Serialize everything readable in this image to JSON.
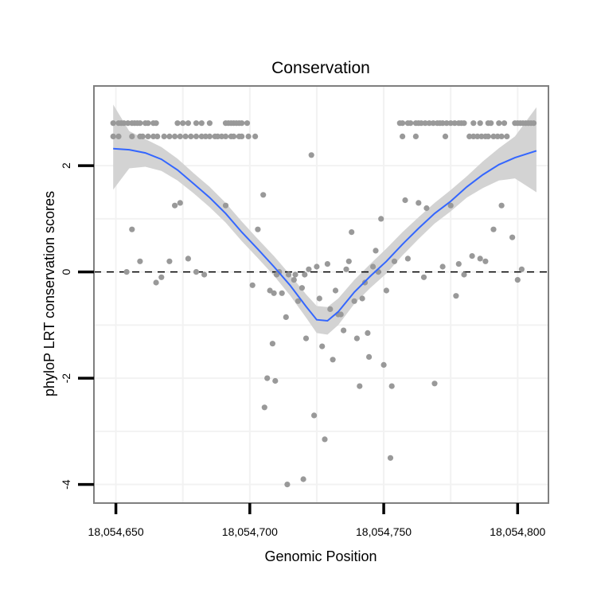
{
  "chart_data": {
    "type": "scatter",
    "title": "Conservation",
    "xlabel": "Genomic Position",
    "ylabel": "phyloP LRT conservation scores",
    "xlim": [
      18054641.8,
      18054811.5
    ],
    "ylim": [
      -4.35,
      3.5
    ],
    "x_ticks": [
      18054650,
      18054700,
      18054750,
      18054800
    ],
    "x_tick_labels": [
      "18,054,650",
      "18,054,700",
      "18,054,750",
      "18,054,800"
    ],
    "y_ticks": [
      -4,
      -2,
      0,
      2
    ],
    "y_tick_labels": [
      "-4",
      "-2",
      "0",
      "2"
    ],
    "reference_line": {
      "y": 0,
      "style": "dashed"
    },
    "colors": {
      "points": "#999999",
      "smooth": "#3366ff",
      "band": "#d3d3d3",
      "frame": "#7f7f7f",
      "grid": "#f2f2f2"
    },
    "points": [
      [
        18054649.0,
        2.8
      ],
      [
        18054651.0,
        2.8
      ],
      [
        18054652.0,
        2.8
      ],
      [
        18054653.0,
        2.8
      ],
      [
        18054654.5,
        2.8
      ],
      [
        18054656.0,
        2.8
      ],
      [
        18054657.0,
        2.8
      ],
      [
        18054658.0,
        2.8
      ],
      [
        18054659.0,
        2.8
      ],
      [
        18054661.0,
        2.8
      ],
      [
        18054662.0,
        2.8
      ],
      [
        18054664.0,
        2.8
      ],
      [
        18054665.0,
        2.8
      ],
      [
        18054673.0,
        2.8
      ],
      [
        18054675.0,
        2.8
      ],
      [
        18054677.0,
        2.8
      ],
      [
        18054680.0,
        2.8
      ],
      [
        18054682.0,
        2.8
      ],
      [
        18054685.0,
        2.8
      ],
      [
        18054691.0,
        2.8
      ],
      [
        18054692.0,
        2.8
      ],
      [
        18054693.0,
        2.8
      ],
      [
        18054694.0,
        2.8
      ],
      [
        18054695.0,
        2.8
      ],
      [
        18054696.0,
        2.8
      ],
      [
        18054697.0,
        2.8
      ],
      [
        18054699.0,
        2.8
      ],
      [
        18054649.0,
        2.55
      ],
      [
        18054651.0,
        2.55
      ],
      [
        18054656.0,
        2.55
      ],
      [
        18054659.0,
        2.55
      ],
      [
        18054660.0,
        2.55
      ],
      [
        18054662.0,
        2.55
      ],
      [
        18054664.0,
        2.55
      ],
      [
        18054665.5,
        2.55
      ],
      [
        18054668.0,
        2.55
      ],
      [
        18054670.0,
        2.55
      ],
      [
        18054672.0,
        2.55
      ],
      [
        18054674.0,
        2.55
      ],
      [
        18054676.0,
        2.55
      ],
      [
        18054678.0,
        2.55
      ],
      [
        18054680.0,
        2.55
      ],
      [
        18054682.0,
        2.55
      ],
      [
        18054683.5,
        2.55
      ],
      [
        18054685.0,
        2.55
      ],
      [
        18054687.0,
        2.55
      ],
      [
        18054688.0,
        2.55
      ],
      [
        18054689.5,
        2.55
      ],
      [
        18054691.0,
        2.55
      ],
      [
        18054693.0,
        2.55
      ],
      [
        18054694.0,
        2.55
      ],
      [
        18054696.0,
        2.55
      ],
      [
        18054697.0,
        2.55
      ],
      [
        18054699.5,
        2.55
      ],
      [
        18054702.0,
        2.55
      ],
      [
        18054656.0,
        0.8
      ],
      [
        18054659.0,
        0.2
      ],
      [
        18054654.0,
        0.0
      ],
      [
        18054665.0,
        -0.2
      ],
      [
        18054667.0,
        -0.1
      ],
      [
        18054670.0,
        0.2
      ],
      [
        18054672.0,
        1.25
      ],
      [
        18054674.0,
        1.3
      ],
      [
        18054677.0,
        0.25
      ],
      [
        18054680.0,
        0.0
      ],
      [
        18054683.0,
        -0.05
      ],
      [
        18054691.0,
        1.25
      ],
      [
        18054701.0,
        -0.25
      ],
      [
        18054703.0,
        0.8
      ],
      [
        18054705.0,
        1.45
      ],
      [
        18054705.5,
        -2.55
      ],
      [
        18054706.5,
        -2.0
      ],
      [
        18054708.5,
        -1.35
      ],
      [
        18054707.5,
        -0.35
      ],
      [
        18054709.0,
        -0.4
      ],
      [
        18054709.5,
        -2.05
      ],
      [
        18054710.0,
        -0.05
      ],
      [
        18054711.0,
        0.0
      ],
      [
        18054712.0,
        -0.4
      ],
      [
        18054713.5,
        -0.85
      ],
      [
        18054714.0,
        -4.0
      ],
      [
        18054714.5,
        -0.05
      ],
      [
        18054716.5,
        -0.15
      ],
      [
        18054717.0,
        -0.05
      ],
      [
        18054718.0,
        -0.55
      ],
      [
        18054719.5,
        -0.3
      ],
      [
        18054720.0,
        -3.9
      ],
      [
        18054720.5,
        -0.05
      ],
      [
        18054721.0,
        -1.25
      ],
      [
        18054722.0,
        0.05
      ],
      [
        18054723.0,
        2.2
      ],
      [
        18054724.0,
        -2.7
      ],
      [
        18054725.0,
        0.1
      ],
      [
        18054726.0,
        -0.5
      ],
      [
        18054727.0,
        -1.4
      ],
      [
        18054728.0,
        -3.15
      ],
      [
        18054729.0,
        0.15
      ],
      [
        18054730.0,
        -0.7
      ],
      [
        18054731.0,
        -1.65
      ],
      [
        18054732.0,
        -0.35
      ],
      [
        18054733.0,
        -0.8
      ],
      [
        18054734.0,
        -0.8
      ],
      [
        18054735.0,
        -1.1
      ],
      [
        18054736.0,
        0.05
      ],
      [
        18054737.0,
        0.2
      ],
      [
        18054738.0,
        0.75
      ],
      [
        18054739.0,
        -0.55
      ],
      [
        18054740.0,
        -1.25
      ],
      [
        18054741.0,
        -2.15
      ],
      [
        18054742.0,
        -0.5
      ],
      [
        18054743.0,
        -0.2
      ],
      [
        18054744.0,
        -1.15
      ],
      [
        18054744.5,
        -1.6
      ],
      [
        18054746.0,
        0.1
      ],
      [
        18054747.0,
        0.4
      ],
      [
        18054748.0,
        0.0
      ],
      [
        18054749.0,
        1.0
      ],
      [
        18054750.0,
        -1.75
      ],
      [
        18054751.0,
        -0.35
      ],
      [
        18054752.5,
        -3.5
      ],
      [
        18054753.0,
        -2.15
      ],
      [
        18054754.0,
        0.2
      ],
      [
        18054758.0,
        1.35
      ],
      [
        18054759.0,
        0.25
      ],
      [
        18054763.0,
        1.3
      ],
      [
        18054765.0,
        -0.1
      ],
      [
        18054766.0,
        1.2
      ],
      [
        18054769.0,
        -2.1
      ],
      [
        18054772.0,
        0.1
      ],
      [
        18054775.0,
        1.25
      ],
      [
        18054777.0,
        -0.45
      ],
      [
        18054778.0,
        0.15
      ],
      [
        18054780.0,
        -0.05
      ],
      [
        18054783.0,
        0.3
      ],
      [
        18054786.0,
        0.25
      ],
      [
        18054788.0,
        0.2
      ],
      [
        18054791.0,
        0.8
      ],
      [
        18054794.0,
        1.25
      ],
      [
        18054798.0,
        0.65
      ],
      [
        18054800.0,
        -0.15
      ],
      [
        18054801.5,
        0.05
      ],
      [
        18054756.0,
        2.8
      ],
      [
        18054757.0,
        2.8
      ],
      [
        18054759.0,
        2.8
      ],
      [
        18054760.0,
        2.8
      ],
      [
        18054762.0,
        2.8
      ],
      [
        18054763.0,
        2.8
      ],
      [
        18054764.0,
        2.8
      ],
      [
        18054765.5,
        2.8
      ],
      [
        18054767.0,
        2.8
      ],
      [
        18054768.5,
        2.8
      ],
      [
        18054770.0,
        2.8
      ],
      [
        18054771.0,
        2.8
      ],
      [
        18054772.0,
        2.8
      ],
      [
        18054773.5,
        2.8
      ],
      [
        18054775.0,
        2.8
      ],
      [
        18054776.5,
        2.8
      ],
      [
        18054778.0,
        2.8
      ],
      [
        18054779.0,
        2.8
      ],
      [
        18054780.0,
        2.8
      ],
      [
        18054783.5,
        2.8
      ],
      [
        18054786.0,
        2.8
      ],
      [
        18054789.0,
        2.8
      ],
      [
        18054790.0,
        2.8
      ],
      [
        18054793.0,
        2.8
      ],
      [
        18054795.0,
        2.8
      ],
      [
        18054799.0,
        2.8
      ],
      [
        18054800.0,
        2.8
      ],
      [
        18054801.0,
        2.8
      ],
      [
        18054802.0,
        2.8
      ],
      [
        18054803.0,
        2.8
      ],
      [
        18054804.0,
        2.8
      ],
      [
        18054805.0,
        2.8
      ],
      [
        18054806.0,
        2.8
      ],
      [
        18054757.0,
        2.55
      ],
      [
        18054762.0,
        2.55
      ],
      [
        18054773.0,
        2.55
      ],
      [
        18054782.0,
        2.55
      ],
      [
        18054783.5,
        2.55
      ],
      [
        18054785.0,
        2.55
      ],
      [
        18054786.5,
        2.55
      ],
      [
        18054788.0,
        2.55
      ],
      [
        18054789.0,
        2.55
      ],
      [
        18054791.0,
        2.55
      ],
      [
        18054792.5,
        2.55
      ],
      [
        18054794.0,
        2.55
      ],
      [
        18054796.0,
        2.55
      ]
    ],
    "smooth": {
      "x": [
        18054649,
        18054655,
        18054661,
        18054667,
        18054673,
        18054679,
        18054685,
        18054691,
        18054697,
        18054703,
        18054709,
        18054715,
        18054721,
        18054725,
        18054729,
        18054733,
        18054739,
        18054745,
        18054751,
        18054757,
        18054763,
        18054769,
        18054775,
        18054781,
        18054787,
        18054793,
        18054799,
        18054807
      ],
      "y": [
        2.32,
        2.3,
        2.24,
        2.12,
        1.92,
        1.66,
        1.4,
        1.1,
        0.75,
        0.43,
        0.1,
        -0.25,
        -0.65,
        -0.9,
        -0.92,
        -0.75,
        -0.38,
        -0.08,
        0.2,
        0.52,
        0.82,
        1.1,
        1.33,
        1.6,
        1.83,
        2.02,
        2.15,
        2.28
      ],
      "lower": [
        1.55,
        1.95,
        1.98,
        1.9,
        1.72,
        1.48,
        1.22,
        0.93,
        0.58,
        0.26,
        -0.07,
        -0.44,
        -0.86,
        -1.15,
        -1.18,
        -1.0,
        -0.6,
        -0.3,
        -0.03,
        0.31,
        0.62,
        0.91,
        1.14,
        1.4,
        1.58,
        1.72,
        1.76,
        1.5
      ],
      "upper": [
        3.15,
        2.65,
        2.5,
        2.35,
        2.13,
        1.86,
        1.6,
        1.3,
        0.95,
        0.62,
        0.3,
        -0.05,
        -0.42,
        -0.64,
        -0.66,
        -0.5,
        -0.15,
        0.15,
        0.44,
        0.75,
        1.03,
        1.3,
        1.54,
        1.8,
        2.08,
        2.33,
        2.55,
        3.1
      ]
    }
  }
}
